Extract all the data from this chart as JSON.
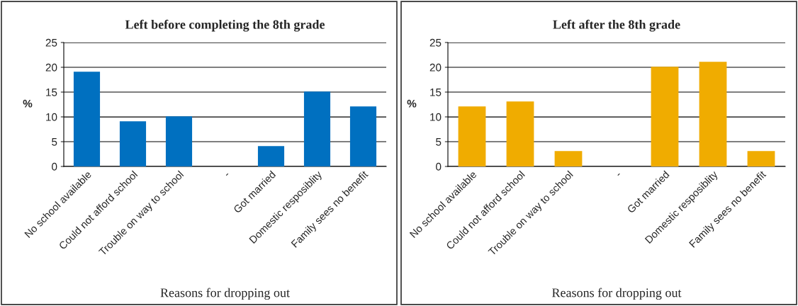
{
  "chart_data": [
    {
      "type": "bar",
      "title": "Left before completing the 8th grade",
      "xlabel": "Reasons for dropping out",
      "ylabel": "%",
      "categories": [
        "No school available",
        "Could not afford school",
        "Trouble on way to school",
        "-",
        "Got married",
        "Domestic resposiblity",
        "Family sees no benefit"
      ],
      "series": [
        {
          "color": "#0070c0",
          "values": [
            19,
            9,
            10,
            null,
            4,
            15,
            12
          ]
        }
      ],
      "ylim": [
        0,
        25
      ],
      "yticks": [
        0,
        5,
        10,
        15,
        20,
        25
      ],
      "grid": "y",
      "legend": false
    },
    {
      "type": "bar",
      "title": "Left after the 8th grade",
      "xlabel": "Reasons for dropping out",
      "ylabel": "%",
      "categories": [
        "No school available",
        "Could not afford school",
        "Trouble on way to school",
        "-",
        "Got married",
        "Domestic resposiblity",
        "Family sees no benefit"
      ],
      "series": [
        {
          "color": "#f0ac00",
          "values": [
            12,
            13,
            3,
            null,
            20,
            21,
            3
          ]
        }
      ],
      "ylim": [
        0,
        25
      ],
      "yticks": [
        0,
        5,
        10,
        15,
        20,
        25
      ],
      "grid": "y",
      "legend": false
    }
  ]
}
